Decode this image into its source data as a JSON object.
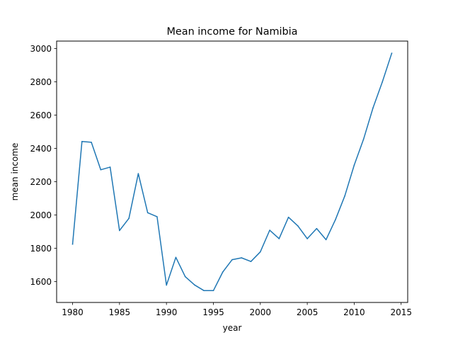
{
  "chart_data": {
    "type": "line",
    "title": "Mean income for Namibia",
    "xlabel": "year",
    "ylabel": "mean income",
    "xlim": [
      1978.3,
      2015.7
    ],
    "ylim": [
      1475,
      3045
    ],
    "xticks": [
      1980,
      1985,
      1990,
      1995,
      2000,
      2005,
      2010,
      2015
    ],
    "yticks": [
      1600,
      1800,
      2000,
      2200,
      2400,
      2600,
      2800,
      3000
    ],
    "grid": false,
    "legend": "none",
    "series": [
      {
        "color": "#1f77b4",
        "x": [
          1980,
          1981,
          1982,
          1983,
          1984,
          1985,
          1986,
          1987,
          1988,
          1989,
          1990,
          1991,
          1992,
          1993,
          1994,
          1995,
          1996,
          1997,
          1998,
          1999,
          2000,
          2001,
          2002,
          2003,
          2004,
          2005,
          2006,
          2007,
          2008,
          2009,
          2010,
          2011,
          2012,
          2013,
          2014
        ],
        "values": [
          1825,
          2442,
          2437,
          2272,
          2288,
          1907,
          1980,
          2249,
          2014,
          1990,
          1579,
          1746,
          1630,
          1580,
          1546,
          1546,
          1658,
          1732,
          1743,
          1721,
          1779,
          1909,
          1858,
          1987,
          1935,
          1858,
          1919,
          1852,
          1972,
          2115,
          2300,
          2456,
          2643,
          2800,
          2972
        ]
      }
    ]
  }
}
